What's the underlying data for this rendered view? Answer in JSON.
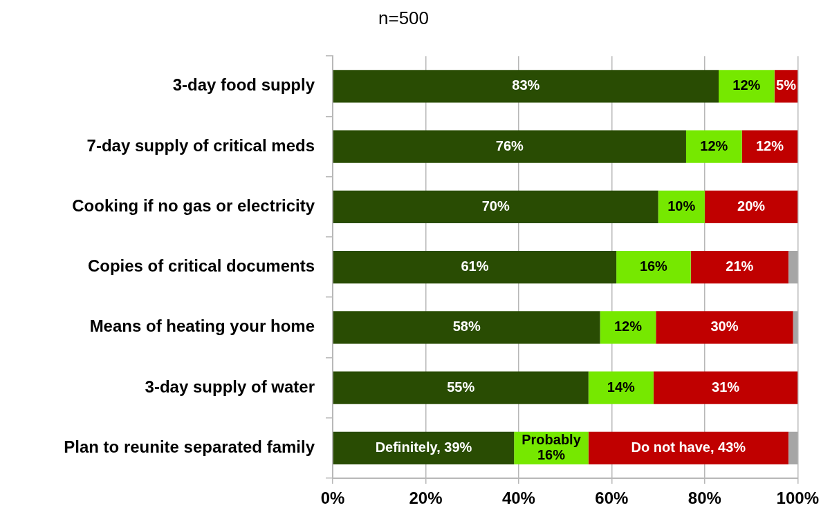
{
  "chart_data": {
    "type": "bar",
    "orientation": "horizontal",
    "stacked": true,
    "title": "n=500",
    "categories": [
      "3-day food supply",
      "7-day supply of critical meds",
      "Cooking if no gas or electricity",
      "Copies of critical documents",
      "Means of heating your home",
      "3-day supply of water",
      "Plan to reunite separated family"
    ],
    "series": [
      {
        "color": "#294c03",
        "values": [
          83,
          76,
          70,
          61,
          57.5,
          55,
          39
        ],
        "value_labels": [
          "83%",
          "76%",
          "70%",
          "61%",
          "58%",
          "55%",
          "Definitely, 39%"
        ]
      },
      {
        "color": "#76e800",
        "values": [
          12,
          12,
          10,
          16,
          12,
          14,
          16
        ],
        "value_labels": [
          "12%",
          "12%",
          "10%",
          "16%",
          "12%",
          "14%",
          "Probably\n16%"
        ]
      },
      {
        "color": "#c00000",
        "values": [
          5,
          12,
          20,
          21,
          29.5,
          31,
          43
        ],
        "value_labels": [
          "5%",
          "12%",
          "20%",
          "21%",
          "30%",
          "31%",
          "Do not have, 43%"
        ]
      },
      {
        "color": "#a6a6a6",
        "values": [
          null,
          null,
          null,
          2,
          1,
          null,
          2
        ]
      }
    ],
    "xlim": [
      0,
      100
    ],
    "xticks": [
      {
        "value": 0,
        "label": "0%"
      },
      {
        "value": 20,
        "label": "20%"
      },
      {
        "value": 40,
        "label": "40%"
      },
      {
        "value": 60,
        "label": "60%"
      },
      {
        "value": 80,
        "label": "80%"
      },
      {
        "value": 100,
        "label": "100%"
      }
    ],
    "grid": "x"
  }
}
